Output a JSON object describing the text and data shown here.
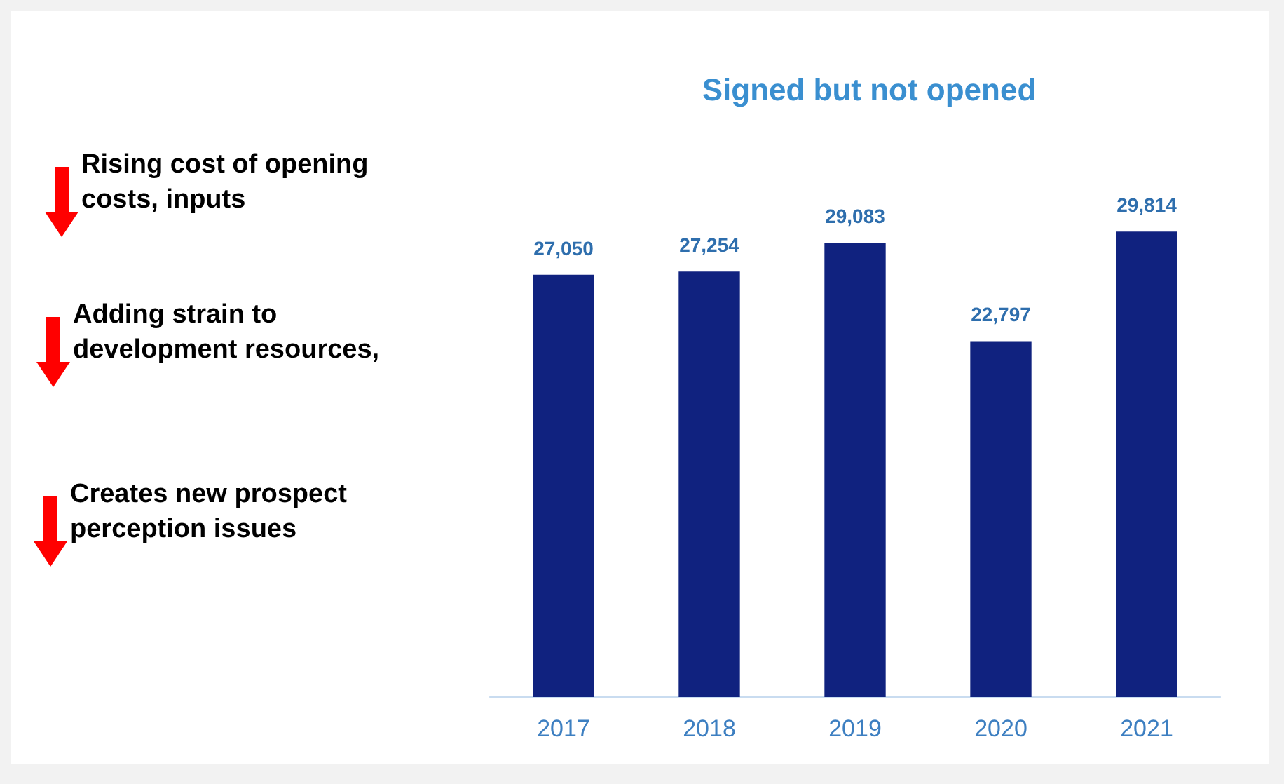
{
  "chart_data": {
    "type": "bar",
    "title": "Signed but not opened",
    "categories": [
      "2017",
      "2018",
      "2019",
      "2020",
      "2021"
    ],
    "values": [
      27050,
      27254,
      29083,
      22797,
      29814
    ],
    "value_labels": [
      "27,050",
      "27,254",
      "29,083",
      "22,797",
      "29,814"
    ],
    "color": "#10227f",
    "annotations": [
      "Rising cost of opening costs, inputs",
      "Adding strain to development resources,",
      "Creates new prospect perception issues"
    ]
  }
}
